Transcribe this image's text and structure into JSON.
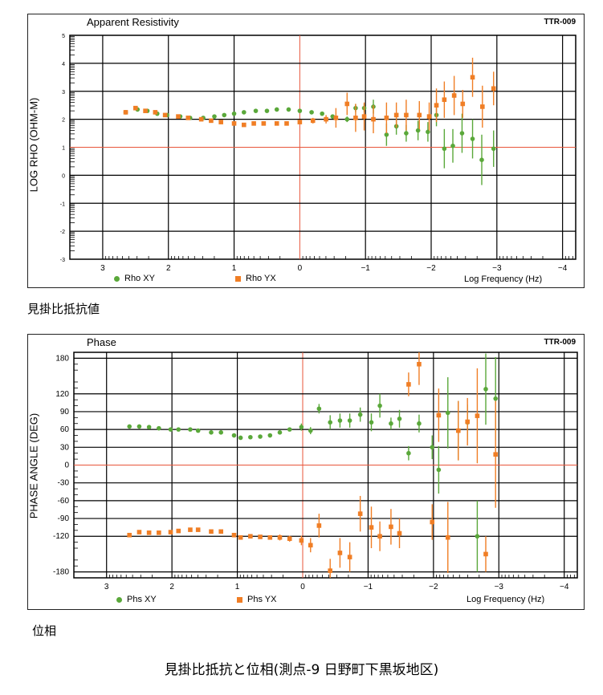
{
  "captions": {
    "rho": "見掛比抵抗値",
    "phase": "位相",
    "bottom": "見掛比抵抗と位相(測点-9 日野町下黒坂地区)"
  },
  "chart_data": [
    {
      "type": "scatter",
      "title": "Apparent Resistivity",
      "station": "TTR-009",
      "ylabel": "LOG RHO (OHM-M)",
      "xlabel": "Log Frequency (Hz)",
      "xlim": [
        3.5,
        -4.2
      ],
      "ylim": [
        -3,
        5
      ],
      "xticks": [
        3,
        2,
        1,
        0,
        -1,
        -2,
        -3,
        -4
      ],
      "xtick_labels": [
        "3",
        "2",
        "1",
        "0",
        "−1",
        "−2",
        "−3",
        "−4"
      ],
      "yticks": [
        -3,
        -2,
        -1,
        0,
        1,
        2,
        3,
        4,
        5
      ],
      "yref": 1,
      "xref": 0,
      "colors": {
        "xy": "#5aa83a",
        "yx": "#f07e25",
        "ref": "#e8553a",
        "grid": "#000000"
      },
      "series": [
        {
          "name": "Rho XY",
          "marker": "circle",
          "x": [
            2.65,
            2.47,
            2.32,
            2.17,
            2.02,
            1.82,
            1.67,
            1.47,
            1.3,
            1.15,
            1.0,
            0.85,
            0.67,
            0.5,
            0.35,
            0.17,
            0.0,
            -0.18,
            -0.34,
            -0.5,
            -0.72,
            -0.85,
            -0.98,
            -1.12,
            -1.32,
            -1.47,
            -1.62,
            -1.8,
            -1.95,
            -2.08,
            -2.2,
            -2.33,
            -2.47,
            -2.63,
            -2.77,
            -2.95
          ],
          "y": [
            2.25,
            2.35,
            2.3,
            2.2,
            2.15,
            2.1,
            2.05,
            2.05,
            2.1,
            2.15,
            2.2,
            2.25,
            2.3,
            2.3,
            2.35,
            2.35,
            2.3,
            2.25,
            2.2,
            2.1,
            2.0,
            2.4,
            2.4,
            2.45,
            1.45,
            1.75,
            1.5,
            1.6,
            1.55,
            2.15,
            0.95,
            1.05,
            1.5,
            1.3,
            0.55,
            0.95
          ],
          "err": [
            0.05,
            0.05,
            0.05,
            0.05,
            0.05,
            0.05,
            0.05,
            0.05,
            0.05,
            0.05,
            0.05,
            0.05,
            0.05,
            0.05,
            0.05,
            0.05,
            0.05,
            0.05,
            0.05,
            0.05,
            0.1,
            0.15,
            0.15,
            0.25,
            0.4,
            0.3,
            0.3,
            0.35,
            0.35,
            0.4,
            0.7,
            0.6,
            0.7,
            0.7,
            0.9,
            0.65
          ]
        },
        {
          "name": "Rho YX",
          "marker": "square",
          "x": [
            2.65,
            2.5,
            2.35,
            2.2,
            2.05,
            1.85,
            1.7,
            1.5,
            1.35,
            1.2,
            1.0,
            0.85,
            0.7,
            0.55,
            0.35,
            0.2,
            0.0,
            -0.2,
            -0.4,
            -0.55,
            -0.72,
            -0.85,
            -0.98,
            -1.12,
            -1.32,
            -1.47,
            -1.62,
            -1.82,
            -1.97,
            -2.08,
            -2.2,
            -2.35,
            -2.48,
            -2.63,
            -2.78,
            -2.95
          ],
          "y": [
            2.25,
            2.4,
            2.3,
            2.25,
            2.15,
            2.1,
            2.05,
            2.0,
            1.95,
            1.9,
            1.85,
            1.8,
            1.85,
            1.85,
            1.85,
            1.85,
            1.9,
            1.95,
            2.0,
            2.05,
            2.55,
            2.05,
            2.1,
            2.0,
            2.05,
            2.15,
            2.15,
            2.15,
            2.1,
            2.5,
            2.7,
            2.85,
            2.55,
            3.5,
            2.45,
            3.1
          ],
          "err": [
            0.05,
            0.05,
            0.05,
            0.05,
            0.05,
            0.05,
            0.05,
            0.05,
            0.05,
            0.05,
            0.05,
            0.05,
            0.05,
            0.05,
            0.05,
            0.05,
            0.05,
            0.1,
            0.15,
            0.35,
            0.4,
            0.5,
            0.5,
            0.5,
            0.55,
            0.45,
            0.55,
            0.5,
            0.5,
            0.6,
            0.65,
            0.7,
            0.5,
            0.7,
            0.75,
            0.6
          ]
        }
      ]
    },
    {
      "type": "scatter",
      "title": "Phase",
      "station": "TTR-009",
      "ylabel": "PHASE ANGLE (DEG)",
      "xlabel": "Log Frequency (Hz)",
      "xlim": [
        3.5,
        -4.2
      ],
      "ylim": [
        -190,
        190
      ],
      "xticks": [
        3,
        2,
        1,
        0,
        -1,
        -2,
        -3,
        -4
      ],
      "xtick_labels": [
        "3",
        "2",
        "1",
        "0",
        "−1",
        "−2",
        "−3",
        "−4"
      ],
      "yticks": [
        -180,
        -120,
        -90,
        -60,
        -30,
        0,
        30,
        60,
        90,
        120,
        180
      ],
      "yref": 0,
      "xref": 0,
      "colors": {
        "xy": "#5aa83a",
        "yx": "#f07e25",
        "ref": "#e8553a",
        "grid": "#000000"
      },
      "series": [
        {
          "name": "Phs XY",
          "marker": "circle",
          "x": [
            2.65,
            2.5,
            2.35,
            2.2,
            2.02,
            1.9,
            1.72,
            1.6,
            1.4,
            1.25,
            1.05,
            0.95,
            0.8,
            0.65,
            0.5,
            0.35,
            0.2,
            0.02,
            -0.12,
            -0.25,
            -0.42,
            -0.57,
            -0.72,
            -0.88,
            -1.05,
            -1.18,
            -1.35,
            -1.48,
            -1.62,
            -1.78,
            -1.98,
            -2.08,
            -2.22,
            -2.38,
            -2.52,
            -2.67,
            -2.8,
            -2.95
          ],
          "y": [
            65,
            65,
            64,
            62,
            60,
            60,
            60,
            58,
            55,
            55,
            50,
            46,
            47,
            48,
            50,
            55,
            60,
            64,
            58,
            95,
            72,
            75,
            75,
            85,
            72,
            100,
            70,
            78,
            20,
            70,
            30,
            -8,
            88,
            58,
            72,
            -120,
            128,
            112
          ],
          "err": [
            2,
            2,
            2,
            2,
            2,
            2,
            2,
            2,
            2,
            2,
            2,
            2,
            2,
            2,
            2,
            3,
            3,
            6,
            6,
            8,
            12,
            12,
            12,
            12,
            15,
            20,
            10,
            15,
            12,
            15,
            20,
            40,
            60,
            50,
            30,
            60,
            60,
            70
          ]
        },
        {
          "name": "Phs YX",
          "marker": "square",
          "x": [
            2.65,
            2.5,
            2.35,
            2.2,
            2.02,
            1.9,
            1.72,
            1.6,
            1.4,
            1.25,
            1.05,
            0.95,
            0.8,
            0.65,
            0.5,
            0.35,
            0.2,
            0.02,
            -0.12,
            -0.25,
            -0.42,
            -0.57,
            -0.72,
            -0.88,
            -1.05,
            -1.18,
            -1.35,
            -1.48,
            -1.62,
            -1.78,
            -1.98,
            -2.08,
            -2.22,
            -2.38,
            -2.52,
            -2.67,
            -2.8,
            -2.95
          ],
          "y": [
            -118,
            -113,
            -114,
            -114,
            -113,
            -111,
            -109,
            -109,
            -112,
            -112,
            -118,
            -122,
            -120,
            -121,
            -122,
            -122,
            -124,
            -127,
            -135,
            -102,
            -178,
            -148,
            -155,
            -82,
            -105,
            -120,
            -104,
            -115,
            136,
            170,
            -96,
            84,
            -122,
            58,
            73,
            83,
            -150,
            18
          ],
          "err": [
            3,
            3,
            3,
            3,
            3,
            3,
            3,
            3,
            3,
            3,
            3,
            3,
            3,
            3,
            3,
            5,
            5,
            8,
            12,
            20,
            20,
            25,
            25,
            30,
            35,
            25,
            30,
            25,
            20,
            35,
            30,
            45,
            60,
            50,
            40,
            80,
            30,
            90
          ]
        }
      ]
    }
  ]
}
